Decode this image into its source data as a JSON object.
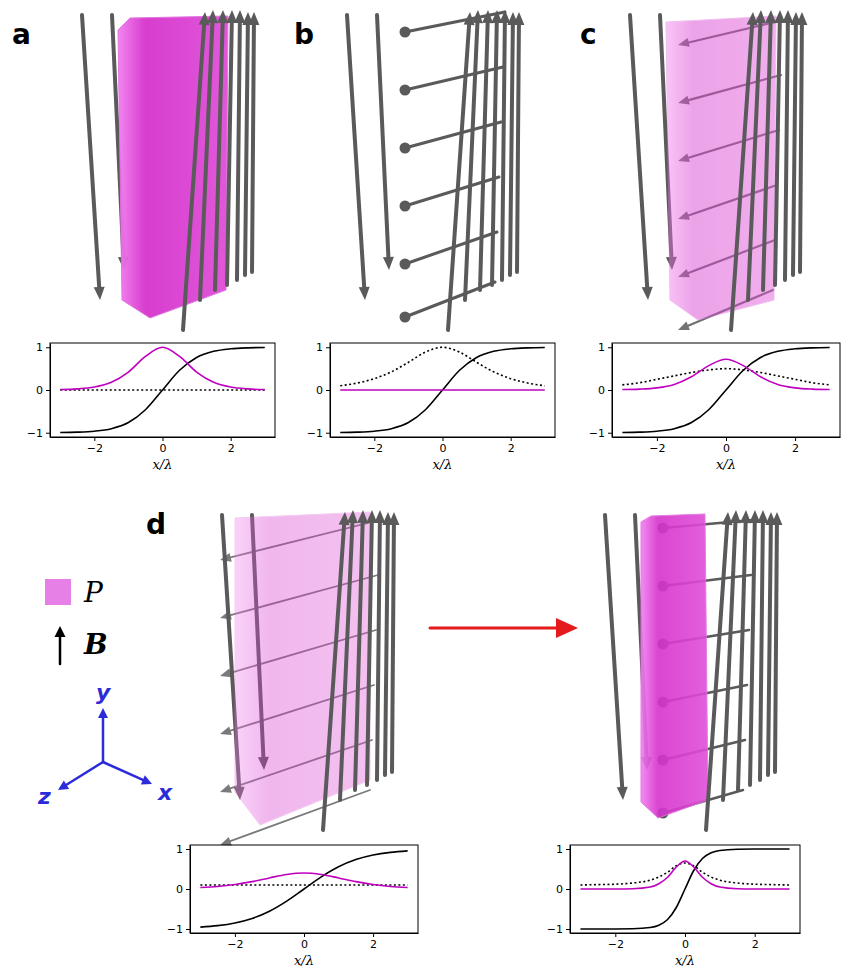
{
  "panel_labels": [
    "a",
    "b",
    "c",
    "d"
  ],
  "legend": {
    "items": [
      {
        "label": "P",
        "kind": "patch",
        "color": "#e67fe6"
      },
      {
        "label": "B",
        "kind": "arrow",
        "color": "#000000"
      }
    ]
  },
  "axes_triad": {
    "labels": [
      "x",
      "y",
      "z"
    ],
    "color": "#2b2bd9"
  },
  "chart_data": [
    {
      "type": "line",
      "xlabel": "x/λ",
      "xlim": [
        -3.3,
        3.3
      ],
      "ylim": [
        -1.1,
        1.1
      ],
      "xticks": [
        {
          "value": -2,
          "label": "−2"
        },
        0,
        2
      ],
      "yticks": [
        {
          "value": -1,
          "label": "−1"
        },
        0,
        1
      ],
      "x": [
        -3,
        -2.5,
        -2,
        -1.5,
        -1,
        -0.5,
        0,
        0.5,
        1,
        1.5,
        2,
        2.5,
        3
      ],
      "series": [
        {
          "color": "#000000",
          "line_style": "dotted",
          "values": [
            0,
            0,
            0,
            0,
            0,
            0,
            0,
            0,
            0,
            0,
            0,
            0,
            0
          ]
        },
        {
          "color": "#000000",
          "line_style": "solid",
          "values": [
            -0.995,
            -0.987,
            -0.964,
            -0.905,
            -0.762,
            -0.462,
            0,
            0.462,
            0.762,
            0.905,
            0.964,
            0.987,
            0.995
          ]
        },
        {
          "color": "#bf00bf",
          "line_style": "solid",
          "values": [
            0.01,
            0.027,
            0.071,
            0.181,
            0.42,
            0.786,
            1,
            0.786,
            0.42,
            0.181,
            0.071,
            0.027,
            0.01
          ]
        }
      ]
    },
    {
      "type": "line",
      "xlabel": "x/λ",
      "xlim": [
        -3.3,
        3.3
      ],
      "ylim": [
        -1.1,
        1.1
      ],
      "xticks": [
        {
          "value": -2,
          "label": "−2"
        },
        0,
        2
      ],
      "yticks": [
        {
          "value": -1,
          "label": "−1"
        },
        0,
        1
      ],
      "x": [
        -3,
        -2.5,
        -2,
        -1.5,
        -1,
        -0.5,
        0,
        0.5,
        1,
        1.5,
        2,
        2.5,
        3
      ],
      "series": [
        {
          "color": "#000000",
          "line_style": "dotted",
          "values": [
            0.099,
            0.163,
            0.266,
            0.425,
            0.648,
            0.887,
            1,
            0.887,
            0.648,
            0.425,
            0.266,
            0.163,
            0.099
          ]
        },
        {
          "color": "#000000",
          "line_style": "solid",
          "values": [
            -0.995,
            -0.987,
            -0.964,
            -0.905,
            -0.762,
            -0.462,
            0,
            0.462,
            0.762,
            0.905,
            0.964,
            0.987,
            0.995
          ]
        },
        {
          "color": "#bf00bf",
          "line_style": "solid",
          "values": [
            0,
            0,
            0,
            0,
            0,
            0,
            0,
            0,
            0,
            0,
            0,
            0,
            0
          ]
        }
      ]
    },
    {
      "type": "line",
      "xlabel": "x/λ",
      "xlim": [
        -3.3,
        3.3
      ],
      "ylim": [
        -1.1,
        1.1
      ],
      "xticks": [
        {
          "value": -2,
          "label": "−2"
        },
        0,
        2
      ],
      "yticks": [
        {
          "value": -1,
          "label": "−1"
        },
        0,
        1
      ],
      "x": [
        -3,
        -2.5,
        -2,
        -1.5,
        -1,
        -0.5,
        0,
        0.5,
        1,
        1.5,
        2,
        2.5,
        3
      ],
      "series": [
        {
          "color": "#000000",
          "line_style": "dotted",
          "values": [
            0.12,
            0.17,
            0.25,
            0.33,
            0.41,
            0.47,
            0.5,
            0.47,
            0.41,
            0.33,
            0.25,
            0.17,
            0.12
          ]
        },
        {
          "color": "#000000",
          "line_style": "solid",
          "values": [
            -0.995,
            -0.987,
            -0.964,
            -0.905,
            -0.762,
            -0.462,
            0,
            0.462,
            0.762,
            0.905,
            0.964,
            0.987,
            0.995
          ]
        },
        {
          "color": "#bf00bf",
          "line_style": "solid",
          "values": [
            0.01,
            0.02,
            0.05,
            0.13,
            0.31,
            0.57,
            0.72,
            0.57,
            0.31,
            0.13,
            0.05,
            0.02,
            0.01
          ]
        }
      ]
    },
    {
      "type": "line",
      "xlabel": "x/λ",
      "xlim": [
        -3.3,
        3.3
      ],
      "ylim": [
        -1.1,
        1.1
      ],
      "xticks": [
        {
          "value": -2,
          "label": "−2"
        },
        0,
        2
      ],
      "yticks": [
        {
          "value": -1,
          "label": "−1"
        },
        0,
        1
      ],
      "x": [
        -3,
        -2.5,
        -2,
        -1.5,
        -1,
        -0.5,
        0,
        0.5,
        1,
        1.5,
        2,
        2.5,
        3
      ],
      "series": [
        {
          "color": "#000000",
          "line_style": "dotted",
          "values": [
            0.1,
            0.1,
            0.1,
            0.1,
            0.1,
            0.1,
            0.1,
            0.1,
            0.1,
            0.1,
            0.1,
            0.1,
            0.1
          ]
        },
        {
          "color": "#000000",
          "line_style": "solid",
          "values": [
            -0.954,
            -0.916,
            -0.848,
            -0.735,
            -0.555,
            -0.303,
            0,
            0.303,
            0.555,
            0.735,
            0.848,
            0.916,
            0.954
          ]
        },
        {
          "color": "#bf00bf",
          "line_style": "solid",
          "values": [
            0.036,
            0.064,
            0.112,
            0.184,
            0.277,
            0.363,
            0.4,
            0.363,
            0.277,
            0.184,
            0.112,
            0.064,
            0.036
          ]
        }
      ]
    },
    {
      "type": "line",
      "xlabel": "x/λ",
      "xlim": [
        -3.3,
        3.3
      ],
      "ylim": [
        -1.1,
        1.1
      ],
      "xticks": [
        {
          "value": -2,
          "label": "−2"
        },
        0,
        2
      ],
      "yticks": [
        {
          "value": -1,
          "label": "−1"
        },
        0,
        1
      ],
      "x": [
        -3,
        -2.5,
        -2,
        -1.5,
        -1,
        -0.75,
        -0.5,
        -0.25,
        0,
        0.25,
        0.5,
        0.75,
        1,
        1.5,
        2,
        2.5,
        3
      ],
      "series": [
        {
          "color": "#000000",
          "line_style": "dotted",
          "values": [
            0.1,
            0.11,
            0.12,
            0.15,
            0.22,
            0.3,
            0.42,
            0.58,
            0.65,
            0.58,
            0.42,
            0.3,
            0.22,
            0.15,
            0.12,
            0.11,
            0.1
          ]
        },
        {
          "color": "#000000",
          "line_style": "solid",
          "values": [
            -1,
            -1,
            -0.999,
            -0.995,
            -0.964,
            -0.905,
            -0.762,
            -0.462,
            0,
            0.462,
            0.762,
            0.905,
            0.964,
            0.995,
            0.999,
            1,
            1
          ]
        },
        {
          "color": "#bf00bf",
          "line_style": "solid",
          "values": [
            0,
            0,
            0.001,
            0.007,
            0.049,
            0.133,
            0.294,
            0.55,
            0.7,
            0.55,
            0.294,
            0.133,
            0.049,
            0.007,
            0.001,
            0,
            0
          ]
        }
      ]
    }
  ]
}
